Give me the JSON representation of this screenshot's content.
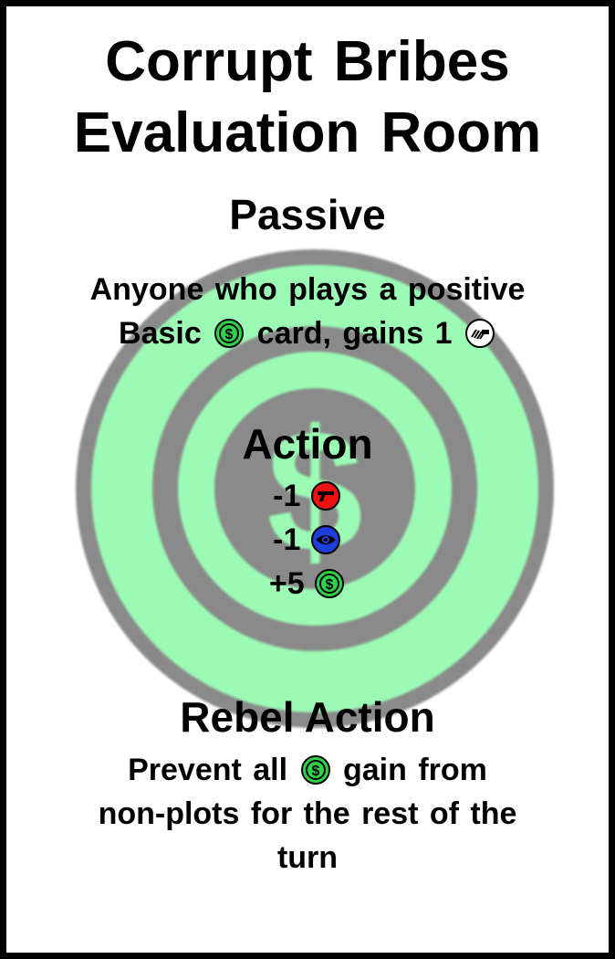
{
  "card": {
    "title_line1": "Corrupt Bribes",
    "title_line2": "Evaluation Room",
    "background_icon": "dollar-coin-icon",
    "colors": {
      "money_green": "#2fd34a",
      "background_art_green": "#9bfbb5",
      "background_art_gray": "#8a8a8a",
      "weapon_red": "#ee1111",
      "intel_blue": "#1f3fdd",
      "border": "#000000"
    }
  },
  "passive": {
    "heading": "Passive",
    "line1": "Anyone who plays a positive",
    "line2_text1": "Basic",
    "line2_icon": "money-icon",
    "line2_text2": "card, gains 1",
    "line2_icon2": "bribe-hand-icon"
  },
  "action": {
    "heading": "Action",
    "effects": [
      {
        "amount": "-1",
        "icon": "gun-icon"
      },
      {
        "amount": "-1",
        "icon": "eye-icon"
      },
      {
        "amount": "+5",
        "icon": "money-icon"
      }
    ]
  },
  "rebel_action": {
    "heading": "Rebel Action",
    "line1_text1": "Prevent all",
    "line1_icon": "money-icon",
    "line1_text2": "gain from",
    "line2": "non-plots for the rest of the",
    "line3": "turn"
  }
}
